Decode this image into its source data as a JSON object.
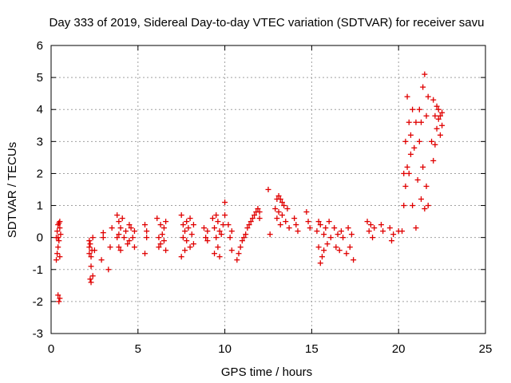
{
  "chart_data": {
    "type": "scatter",
    "title": "Day 333 of 2019, Sidereal Day-to-day VTEC variation (SDTVAR) for receiver savu",
    "xlabel": "GPS time / hours",
    "ylabel": "SDTVAR / TECUs",
    "xlim": [
      0,
      25
    ],
    "ylim": [
      -3,
      6
    ],
    "xticks": [
      "0",
      "5",
      "10",
      "15",
      "20",
      "25"
    ],
    "yticks": [
      "-3",
      "-2",
      "-1",
      "0",
      "1",
      "2",
      "3",
      "4",
      "5",
      "6"
    ],
    "grid": true,
    "marker": "plus",
    "series": [
      {
        "name": "SDTVAR",
        "color": "#e00000",
        "x": [
          0.3,
          0.3,
          0.35,
          0.35,
          0.4,
          0.4,
          0.4,
          0.45,
          0.45,
          0.5,
          0.5,
          0.5,
          0.55,
          0.4,
          0.45,
          0.5,
          2.2,
          2.2,
          2.25,
          2.25,
          2.3,
          2.3,
          2.35,
          2.4,
          2.2,
          2.3,
          2.4,
          2.5,
          2.9,
          3.0,
          3.0,
          3.3,
          3.4,
          3.5,
          3.8,
          3.8,
          3.9,
          3.9,
          3.9,
          4.0,
          4.0,
          4.1,
          4.2,
          4.3,
          4.4,
          4.5,
          4.5,
          4.6,
          4.7,
          4.8,
          4.8,
          5.4,
          5.4,
          5.5,
          5.5,
          6.1,
          6.2,
          6.2,
          6.3,
          6.3,
          6.4,
          6.5,
          6.5,
          6.6,
          6.6,
          7.5,
          7.5,
          7.6,
          7.6,
          7.7,
          7.7,
          7.8,
          7.8,
          7.9,
          8.0,
          8.0,
          8.1,
          8.2,
          8.2,
          8.8,
          8.9,
          9.0,
          9.0,
          9.3,
          9.4,
          9.4,
          9.5,
          9.5,
          9.6,
          9.6,
          9.7,
          9.7,
          9.8,
          9.9,
          10.0,
          10.0,
          10.2,
          10.3,
          10.4,
          10.4,
          10.7,
          10.8,
          10.9,
          11.0,
          11.1,
          11.2,
          11.3,
          11.4,
          11.5,
          11.6,
          11.7,
          11.8,
          11.9,
          12.0,
          12.0,
          12.5,
          12.6,
          12.9,
          13.0,
          13.0,
          13.1,
          13.1,
          13.2,
          13.2,
          13.3,
          13.3,
          13.4,
          13.5,
          13.6,
          13.7,
          14.0,
          14.1,
          14.2,
          14.7,
          14.8,
          14.9,
          15.3,
          15.4,
          15.4,
          15.5,
          15.5,
          15.6,
          15.7,
          15.7,
          15.8,
          15.9,
          16.0,
          16.1,
          16.3,
          16.4,
          16.5,
          16.6,
          16.7,
          16.8,
          17.0,
          17.1,
          17.2,
          17.3,
          17.4,
          18.2,
          18.3,
          18.4,
          18.5,
          18.6,
          19.0,
          19.1,
          19.5,
          19.6,
          19.7,
          20.0,
          20.2,
          20.3,
          20.3,
          20.4,
          20.4,
          20.5,
          20.5,
          20.6,
          20.6,
          20.7,
          20.7,
          20.8,
          20.8,
          20.9,
          21.0,
          21.0,
          21.1,
          21.2,
          21.2,
          21.3,
          21.3,
          21.4,
          21.4,
          21.5,
          21.5,
          21.6,
          21.6,
          21.7,
          21.7,
          21.9,
          22.0,
          22.0,
          22.1,
          22.1,
          22.2,
          22.2,
          22.3,
          22.3,
          22.4,
          22.4,
          22.5,
          22.5
        ],
        "y": [
          0.0,
          -0.7,
          0.2,
          -0.5,
          0.4,
          0.0,
          -0.3,
          0.45,
          -0.1,
          0.3,
          -0.6,
          0.5,
          0.1,
          -1.8,
          -2.0,
          -1.9,
          -0.3,
          -0.5,
          -0.2,
          -1.3,
          -0.6,
          -1.4,
          -0.4,
          -1.2,
          -0.1,
          -0.9,
          0.0,
          -0.4,
          -0.7,
          0.0,
          0.15,
          -1.0,
          -0.3,
          0.3,
          0.7,
          0.0,
          0.5,
          -0.3,
          0.1,
          0.3,
          -0.4,
          0.6,
          0.0,
          0.2,
          -0.2,
          0.4,
          -0.1,
          0.3,
          0.0,
          0.2,
          -0.3,
          0.4,
          -0.5,
          0.0,
          0.2,
          0.6,
          0.0,
          -0.3,
          0.4,
          -0.2,
          0.1,
          0.3,
          -0.1,
          0.5,
          -0.4,
          0.7,
          -0.6,
          0.4,
          0.0,
          0.2,
          -0.4,
          0.5,
          -0.1,
          0.3,
          0.6,
          -0.3,
          0.1,
          0.4,
          -0.2,
          0.3,
          0.0,
          0.2,
          -0.1,
          0.6,
          0.3,
          -0.5,
          0.7,
          0.0,
          -0.3,
          0.5,
          0.2,
          -0.6,
          0.1,
          0.4,
          1.1,
          0.7,
          0.4,
          0.0,
          -0.4,
          0.2,
          -0.7,
          -0.5,
          -0.3,
          -0.1,
          0.0,
          0.1,
          0.3,
          0.4,
          0.5,
          0.6,
          0.7,
          0.8,
          0.9,
          0.8,
          0.6,
          1.5,
          0.1,
          0.9,
          1.2,
          0.6,
          1.3,
          0.8,
          1.2,
          0.4,
          1.1,
          0.7,
          1.0,
          0.5,
          0.9,
          0.3,
          0.6,
          0.4,
          0.2,
          0.8,
          0.5,
          0.3,
          0.2,
          -0.3,
          0.5,
          -0.8,
          0.4,
          -0.6,
          0.1,
          -0.4,
          0.3,
          -0.2,
          0.5,
          0.0,
          0.3,
          -0.3,
          0.1,
          -0.4,
          0.2,
          0.0,
          -0.5,
          0.3,
          -0.3,
          0.1,
          -0.7,
          0.5,
          0.2,
          0.4,
          0.0,
          0.3,
          0.4,
          0.2,
          0.3,
          -0.1,
          0.1,
          0.2,
          0.2,
          1.0,
          2.0,
          1.6,
          3.0,
          2.2,
          4.4,
          2.0,
          3.6,
          3.2,
          2.6,
          4.0,
          1.0,
          2.8,
          0.3,
          3.6,
          1.8,
          3.0,
          4.0,
          1.2,
          3.6,
          2.2,
          4.7,
          0.9,
          5.1,
          1.6,
          3.8,
          1.0,
          4.4,
          3.0,
          4.3,
          2.4,
          3.8,
          2.9,
          4.1,
          3.4,
          3.7,
          4.0,
          3.2,
          3.8,
          3.5,
          3.9
        ]
      }
    ]
  }
}
